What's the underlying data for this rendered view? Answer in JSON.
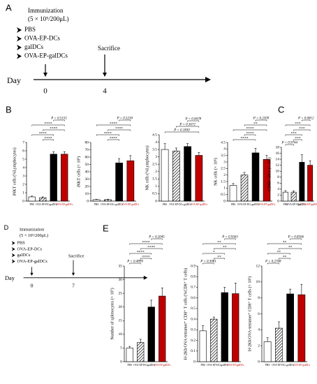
{
  "timelines": [
    {
      "label": "A",
      "title": "Immunization",
      "dose": "(5 × 10⁵/200μL)",
      "groups": [
        "PBS",
        "OVA-EP-DCs",
        "galDCs",
        "OVA-EP-galDCs"
      ],
      "event": "Sacrifice",
      "axis_label": "Day",
      "days": [
        0,
        4
      ]
    },
    {
      "label": "D",
      "title": "Immunization",
      "dose": "(5 × 10⁵/200μL)",
      "groups": [
        "PBS",
        "OVA-EP-DCs",
        "galDCs",
        "OVA-EP-galDCs"
      ],
      "event": "Sacrifice",
      "axis_label": "Day",
      "days": [
        0,
        7
      ]
    }
  ],
  "panel_labels": [
    "B",
    "C",
    "E"
  ],
  "chart_data": [
    {
      "type": "bar",
      "ylabel": "iNKT cells (%Lymphocytes)",
      "categories": [
        "PBS",
        "OVA-EP-DCs",
        "galDCs",
        "OVA-EP-galDCs"
      ],
      "values": [
        0.5,
        0.4,
        5.6,
        5.6
      ],
      "errors": [
        0.1,
        0.1,
        0.3,
        0.3
      ],
      "colors": [
        "#ffffff",
        "#ffffff",
        "#000000",
        "#c00000"
      ],
      "hatch": [
        false,
        true,
        false,
        false
      ],
      "label_colors": [
        "#000000",
        "#000000",
        "#000000",
        "#c00000"
      ],
      "ylim": [
        0,
        7
      ],
      "yticks": [
        0,
        1,
        2,
        3,
        4,
        5,
        6,
        7
      ],
      "annotations": [
        {
          "text": "P = 0.5155",
          "span": [
            "galDCs",
            "OVA-EP-galDCs"
          ]
        },
        {
          "text": "****",
          "span": [
            "PBS",
            "OVA-EP-galDCs"
          ]
        },
        {
          "text": "****",
          "span": [
            "OVA-EP-DCs",
            "OVA-EP-galDCs"
          ]
        },
        {
          "text": "****",
          "span": [
            "PBS",
            "galDCs"
          ]
        },
        {
          "text": "****",
          "span": [
            "OVA-EP-DCs",
            "galDCs"
          ]
        }
      ]
    },
    {
      "type": "bar",
      "ylabel": "iNKT cells (× 10⁵)",
      "categories": [
        "PBS",
        "OVA-EP-DCs",
        "galDCs",
        "OVA-EP-galDCs"
      ],
      "values": [
        2,
        2,
        52,
        55
      ],
      "errors": [
        0.5,
        0.5,
        6,
        7
      ],
      "colors": [
        "#ffffff",
        "#ffffff",
        "#000000",
        "#c00000"
      ],
      "hatch": [
        false,
        true,
        false,
        false
      ],
      "label_colors": [
        "#000000",
        "#000000",
        "#000000",
        "#c00000"
      ],
      "ylim": [
        0,
        80
      ],
      "yticks": [
        0,
        10,
        20,
        30,
        40,
        50,
        60,
        70,
        80
      ],
      "annotations": [
        {
          "text": "P = 0.5230",
          "span": [
            "galDCs",
            "OVA-EP-galDCs"
          ]
        },
        {
          "text": "****",
          "span": [
            "PBS",
            "OVA-EP-galDCs"
          ]
        },
        {
          "text": "****",
          "span": [
            "OVA-EP-DCs",
            "OVA-EP-galDCs"
          ]
        },
        {
          "text": "****",
          "span": [
            "PBS",
            "galDCs"
          ]
        },
        {
          "text": "****",
          "span": [
            "OVA-EP-DCs",
            "galDCs"
          ]
        }
      ]
    },
    {
      "type": "bar",
      "ylabel": "NK cells (%Lymphocytes)",
      "categories": [
        "PBS",
        "OVA-EP-DCs",
        "galDCs",
        "OVA-EP-galDCs"
      ],
      "values": [
        3.5,
        3.4,
        3.7,
        3.1
      ],
      "errors": [
        0.4,
        0.2,
        0.2,
        0.2
      ],
      "colors": [
        "#ffffff",
        "#ffffff",
        "#000000",
        "#c00000"
      ],
      "hatch": [
        false,
        true,
        false,
        false
      ],
      "label_colors": [
        "#000000",
        "#000000",
        "#000000",
        "#c00000"
      ],
      "ylim": [
        0,
        4.5
      ],
      "yticks": [
        0,
        0.5,
        1,
        1.5,
        2,
        2.5,
        3,
        3.5,
        4,
        4.5
      ],
      "annotations": [
        {
          "text": "P = 0.0678",
          "span": [
            "galDCs",
            "OVA-EP-galDCs"
          ]
        },
        {
          "text": "P = 0.3672",
          "span": [
            "OVA-EP-DCs",
            "OVA-EP-galDCs"
          ]
        },
        {
          "text": "P = 0.1830",
          "span": [
            "PBS",
            "OVA-EP-galDCs"
          ]
        }
      ]
    },
    {
      "type": "bar",
      "ylabel": "NK cells (× 10⁵)",
      "categories": [
        "PBS",
        "OVA-EP-DCs",
        "galDCs",
        "OVA-EP-galDCs"
      ],
      "values": [
        1.2,
        2.0,
        3.7,
        3.2
      ],
      "errors": [
        0.15,
        0.2,
        0.35,
        0.3
      ],
      "colors": [
        "#ffffff",
        "#ffffff",
        "#000000",
        "#c00000"
      ],
      "hatch": [
        false,
        true,
        false,
        false
      ],
      "label_colors": [
        "#000000",
        "#000000",
        "#000000",
        "#c00000"
      ],
      "ylim": [
        0,
        4.5
      ],
      "yticks": [
        0,
        0.5,
        1,
        1.5,
        2,
        2.5,
        3,
        3.5,
        4,
        4.5
      ],
      "annotations": [
        {
          "text": "P = 0.2509",
          "span": [
            "galDCs",
            "OVA-EP-galDCs"
          ]
        },
        {
          "text": "**",
          "span": [
            "OVA-EP-DCs",
            "OVA-EP-galDCs"
          ]
        },
        {
          "text": "****",
          "span": [
            "PBS",
            "OVA-EP-galDCs"
          ]
        },
        {
          "text": "****",
          "span": [
            "OVA-EP-DCs",
            "galDCs"
          ]
        },
        {
          "text": "****",
          "span": [
            "PBS",
            "galDCs"
          ]
        }
      ]
    },
    {
      "type": "bar",
      "ylabel": "CD86⁺ DCs (× 10⁵)",
      "categories": [
        "PBS",
        "OVA-EP-DCs",
        "galDCs",
        "OVA-EP-galDCs"
      ],
      "values": [
        3,
        3,
        13,
        12
      ],
      "errors": [
        0.5,
        0.4,
        2.5,
        1.5
      ],
      "colors": [
        "#ffffff",
        "#ffffff",
        "#000000",
        "#c00000"
      ],
      "hatch": [
        false,
        true,
        false,
        false
      ],
      "label_colors": [
        "#000000",
        "#000000",
        "#000000",
        "#c00000"
      ],
      "ylim": [
        0,
        18
      ],
      "yticks": [
        0,
        2,
        4,
        6,
        8,
        10,
        12,
        14,
        16,
        18
      ],
      "annotations": [
        {
          "text": "P = 0.0812",
          "span": [
            "galDCs",
            "OVA-EP-galDCs"
          ]
        },
        {
          "text": "***",
          "span": [
            "PBS",
            "OVA-EP-galDCs"
          ]
        },
        {
          "text": "***",
          "span": [
            "OVA-EP-DCs",
            "OVA-EP-galDCs"
          ]
        },
        {
          "text": "***",
          "span": [
            "PBS",
            "galDCs"
          ]
        },
        {
          "text": "***",
          "span": [
            "OVA-EP-DCs",
            "galDCs"
          ]
        },
        {
          "text": "P = 0.9744",
          "span": [
            "PBS",
            "OVA-EP-DCs"
          ]
        }
      ]
    },
    {
      "type": "bar",
      "ylabel": "Number of splenocytes (× 10⁷)",
      "categories": [
        "PBS",
        "OVA-EP-DCs",
        "galDCs",
        "OVA-EP-galDCs"
      ],
      "values": [
        5,
        7,
        20,
        24
      ],
      "errors": [
        0.6,
        1.2,
        2.5,
        3
      ],
      "colors": [
        "#ffffff",
        "#ffffff",
        "#000000",
        "#c00000"
      ],
      "hatch": [
        false,
        true,
        false,
        false
      ],
      "label_colors": [
        "#000000",
        "#000000",
        "#000000",
        "#c00000"
      ],
      "ylim": [
        0,
        35
      ],
      "yticks": [
        0,
        5,
        10,
        15,
        20,
        25,
        30,
        35
      ],
      "annotations": [
        {
          "text": "P = 0.2045",
          "span": [
            "galDCs",
            "OVA-EP-galDCs"
          ]
        },
        {
          "text": "****",
          "span": [
            "PBS",
            "OVA-EP-galDCs"
          ]
        },
        {
          "text": "****",
          "span": [
            "OVA-EP-DCs",
            "OVA-EP-galDCs"
          ]
        },
        {
          "text": "****",
          "span": [
            "PBS",
            "galDCs"
          ]
        },
        {
          "text": "****",
          "span": [
            "OVA-EP-DCs",
            "galDCs"
          ]
        },
        {
          "text": "P = 0.4899",
          "span": [
            "PBS",
            "OVA-EP-DCs"
          ]
        }
      ]
    },
    {
      "type": "bar",
      "ylabel": "H-2Kb/OVA-tetramer⁺ CD8⁺ T cells (%CD8⁺ T cells)",
      "categories": [
        "PBS",
        "OVA-EP-DCs",
        "galDCs",
        "OVA-EP-galDCs"
      ],
      "values": [
        0.29,
        0.4,
        0.65,
        0.64
      ],
      "errors": [
        0.05,
        0.02,
        0.05,
        0.1
      ],
      "colors": [
        "#ffffff",
        "#ffffff",
        "#000000",
        "#c00000"
      ],
      "hatch": [
        false,
        true,
        false,
        false
      ],
      "label_colors": [
        "#000000",
        "#000000",
        "#000000",
        "#c00000"
      ],
      "ylim": [
        0,
        0.9
      ],
      "yticks": [
        0,
        0.1,
        0.2,
        0.3,
        0.4,
        0.5,
        0.6,
        0.7,
        0.8,
        0.9
      ],
      "annotations": [
        {
          "text": "P = 0.9363",
          "span": [
            "galDCs",
            "OVA-EP-galDCs"
          ]
        },
        {
          "text": "**",
          "span": [
            "PBS",
            "OVA-EP-galDCs"
          ]
        },
        {
          "text": "**",
          "span": [
            "OVA-EP-DCs",
            "OVA-EP-galDCs"
          ]
        },
        {
          "text": "*",
          "span": [
            "PBS",
            "galDCs"
          ]
        },
        {
          "text": "**",
          "span": [
            "OVA-EP-DCs",
            "galDCs"
          ]
        },
        {
          "text": "P = 0.3081",
          "span": [
            "PBS",
            "OVA-EP-DCs"
          ]
        }
      ]
    },
    {
      "type": "bar",
      "ylabel": "H-2Kb/OVA-tetramer⁺ CD8⁺ T cells (× 10³)",
      "categories": [
        "PBS",
        "OVA-EP-DCs",
        "galDCs",
        "OVA-EP-galDCs"
      ],
      "values": [
        2.5,
        4.2,
        8.5,
        8.4
      ],
      "errors": [
        0.5,
        0.8,
        0.6,
        1.3
      ],
      "colors": [
        "#ffffff",
        "#ffffff",
        "#000000",
        "#c00000"
      ],
      "hatch": [
        false,
        true,
        false,
        false
      ],
      "label_colors": [
        "#000000",
        "#000000",
        "#000000",
        "#c00000"
      ],
      "ylim": [
        0,
        12
      ],
      "yticks": [
        0,
        2,
        4,
        6,
        8,
        10,
        12
      ],
      "annotations": [
        {
          "text": "P = 0.8506",
          "span": [
            "galDCs",
            "OVA-EP-galDCs"
          ]
        },
        {
          "text": "**",
          "span": [
            "PBS",
            "OVA-EP-galDCs"
          ]
        },
        {
          "text": "**",
          "span": [
            "OVA-EP-DCs",
            "OVA-EP-galDCs"
          ]
        },
        {
          "text": "**",
          "span": [
            "PBS",
            "galDCs"
          ]
        },
        {
          "text": "**",
          "span": [
            "OVA-EP-DCs",
            "galDCs"
          ]
        },
        {
          "text": "P = 0.2768",
          "span": [
            "PBS",
            "OVA-EP-DCs"
          ]
        }
      ]
    }
  ]
}
